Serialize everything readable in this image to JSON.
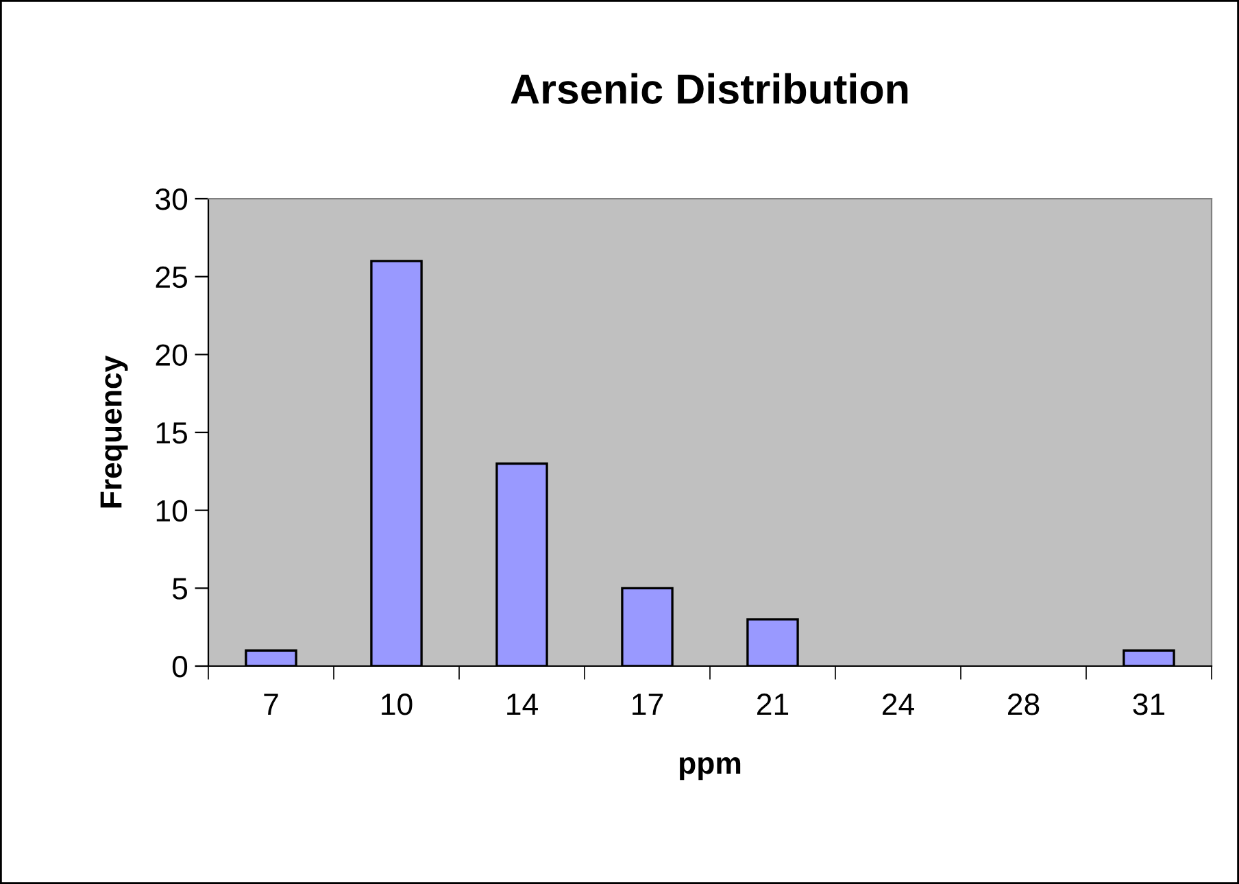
{
  "chart_data": {
    "type": "bar",
    "title": "Arsenic Distribution",
    "xlabel": "ppm",
    "ylabel": "Frequency",
    "categories": [
      "7",
      "10",
      "14",
      "17",
      "21",
      "24",
      "28",
      "31"
    ],
    "values": [
      1,
      26,
      13,
      5,
      3,
      0,
      0,
      1
    ],
    "color": "#9999ff",
    "ylim": [
      0,
      30
    ],
    "yticks": [
      0,
      5,
      10,
      15,
      20,
      25,
      30
    ],
    "grid": false,
    "legend": false
  }
}
